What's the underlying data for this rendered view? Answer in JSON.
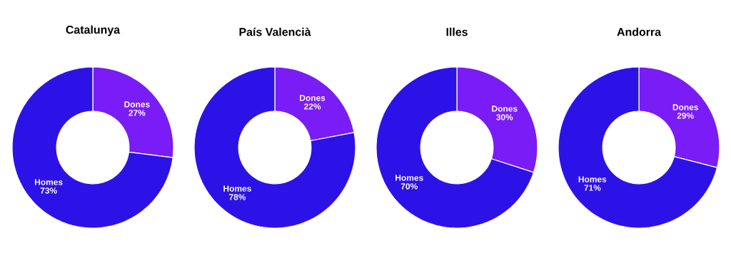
{
  "chart_data": [
    {
      "type": "donut",
      "title": "Catalunya",
      "categories": [
        "Dones",
        "Homes"
      ],
      "values": [
        27,
        73
      ],
      "value_labels": [
        "27%",
        "73%"
      ],
      "colors": [
        "#7a1cf6",
        "#2d12e8"
      ]
    },
    {
      "type": "donut",
      "title": "País Valencià",
      "categories": [
        "Dones",
        "Homes"
      ],
      "values": [
        22,
        78
      ],
      "value_labels": [
        "22%",
        "78%"
      ],
      "colors": [
        "#7a1cf6",
        "#2d12e8"
      ]
    },
    {
      "type": "donut",
      "title": "Illes",
      "categories": [
        "Dones",
        "Homes"
      ],
      "values": [
        30,
        70
      ],
      "value_labels": [
        "30%",
        "70%"
      ],
      "colors": [
        "#7a1cf6",
        "#2d12e8"
      ]
    },
    {
      "type": "donut",
      "title": "Andorra",
      "categories": [
        "Dones",
        "Homes"
      ],
      "values": [
        29,
        71
      ],
      "value_labels": [
        "29%",
        "71%"
      ],
      "colors": [
        "#7a1cf6",
        "#2d12e8"
      ]
    }
  ]
}
